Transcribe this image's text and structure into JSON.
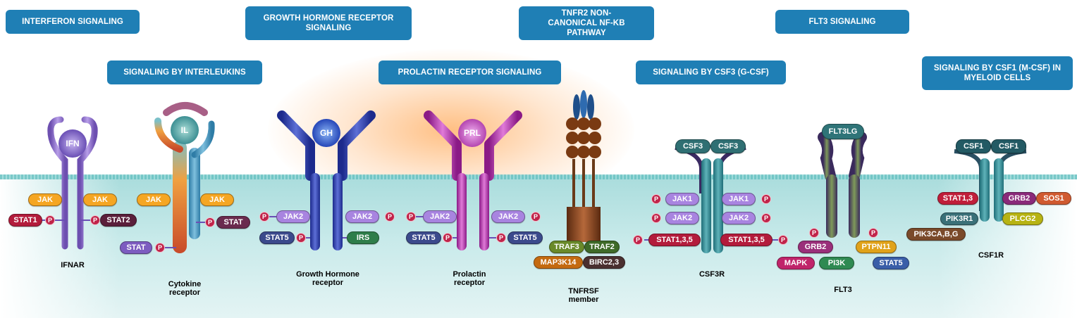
{
  "banners": {
    "interferon": "INTERFERON SIGNALING",
    "interleukins": "SIGNALING BY INTERLEUKINS",
    "growth_hormone": "GROWTH HORMONE RECEPTOR SIGNALING",
    "prolactin": "PROLACTIN RECEPTOR SIGNALING",
    "tnfr2": "TNFR2 NON-CANONICAL NF-KB PATHWAY",
    "csf3": "SIGNALING BY CSF3 (G-CSF)",
    "flt3": "FLT3 SIGNALING",
    "csf1": "SIGNALING BY CSF1 (M-CSF) IN MYELOID CELLS"
  },
  "phospho_label": "P",
  "ifnar": {
    "ligand": "IFN",
    "caption": "IFNAR",
    "jak_left": "JAK",
    "jak_right": "JAK",
    "stat_left": "STAT1",
    "stat_right": "STAT2"
  },
  "cytokine": {
    "ligand": "IL",
    "caption_line1": "Cytokine",
    "caption_line2": "receptor",
    "jak_left": "JAK",
    "jak_right": "JAK",
    "stat_right": "STAT",
    "stat_left": "STAT"
  },
  "gh": {
    "ligand": "GH",
    "caption_line1": "Growth Hormone",
    "caption_line2": "receptor",
    "jak_left": "JAK2",
    "jak_right": "JAK2",
    "stat": "STAT5",
    "irs": "IRS"
  },
  "prl": {
    "ligand": "PRL",
    "caption_line1": "Prolactin",
    "caption_line2": "receptor",
    "jak_left": "JAK2",
    "jak_right": "JAK2",
    "stat_left": "STAT5",
    "stat_right": "STAT5"
  },
  "tnfrsf": {
    "caption_line1": "TNFRSF",
    "caption_line2": "member",
    "traf3": "TRAF3",
    "traf2": "TRAF2",
    "map3k14": "MAP3K14",
    "birc": "BIRC2,3"
  },
  "csf3r": {
    "ligand_left": "CSF3",
    "ligand_right": "CSF3",
    "caption": "CSF3R",
    "jak1_left": "JAK1",
    "jak1_right": "JAK1",
    "jak2_left": "JAK2",
    "jak2_right": "JAK2",
    "stat_left": "STAT1,3,5",
    "stat_right": "STAT1,3,5"
  },
  "flt3": {
    "ligand": "FLT3LG",
    "caption": "FLT3",
    "grb2": "GRB2",
    "ptpn11": "PTPN11",
    "mapk": "MAPK",
    "pi3k": "PI3K",
    "stat5": "STAT5"
  },
  "csf1r": {
    "ligand_left": "CSF1",
    "ligand_right": "CSF1",
    "caption": "CSF1R",
    "stat": "STAT1,3",
    "pik3r1": "PIK3R1",
    "pik3ca": "PIK3CA,B,G",
    "grb2": "GRB2",
    "sos1": "SOS1",
    "plcg2": "PLCG2"
  }
}
